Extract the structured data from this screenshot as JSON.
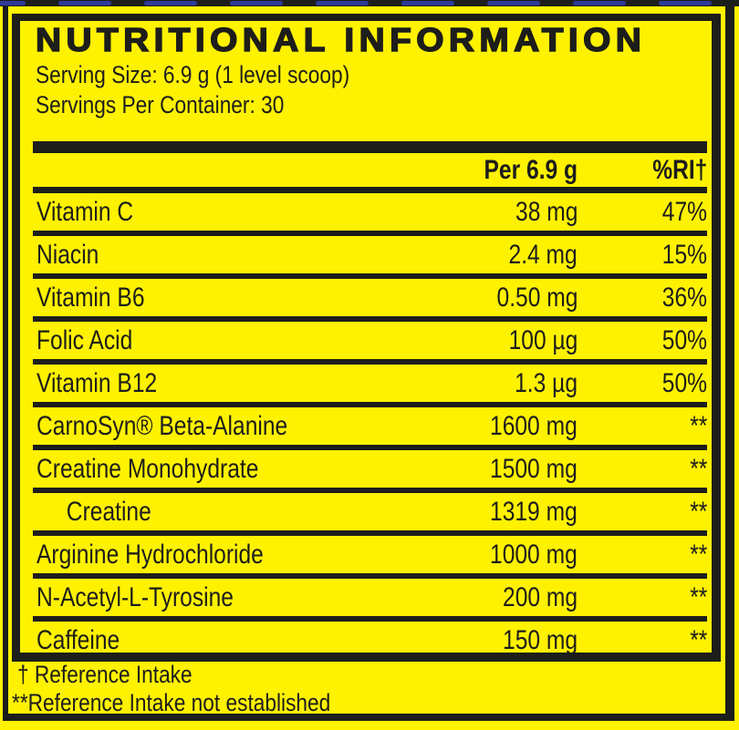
{
  "label": {
    "title": "NUTRITIONAL INFORMATION",
    "serving_size": "Serving Size: 6.9 g (1 level scoop)",
    "servings_per_container": "Servings Per Container: 30"
  },
  "table": {
    "columns": {
      "amount": "Per 6.9 g",
      "rdi": "%RI†"
    },
    "rows": [
      {
        "name": "Vitamin C",
        "amount": "38 mg",
        "rdi": "47%"
      },
      {
        "name": "Niacin",
        "amount": "2.4 mg",
        "rdi": "15%"
      },
      {
        "name": "Vitamin B6",
        "amount": "0.50 mg",
        "rdi": "36%"
      },
      {
        "name": "Folic Acid",
        "amount": "100 µg",
        "rdi": "50%"
      },
      {
        "name": "Vitamin B12",
        "amount": "1.3 µg",
        "rdi": "50%"
      },
      {
        "name": "CarnoSyn® Beta-Alanine",
        "amount": "1600 mg",
        "rdi": "**"
      },
      {
        "name": "Creatine Monohydrate",
        "amount": "1500 mg",
        "rdi": "**"
      },
      {
        "name": "Creatine",
        "amount": "1319 mg",
        "rdi": "**"
      },
      {
        "name": "Arginine Hydrochloride",
        "amount": "1000 mg",
        "rdi": "**"
      },
      {
        "name": "N-Acetyl-L-Tyrosine",
        "amount": "200 mg",
        "rdi": "**"
      },
      {
        "name": "Caffeine",
        "amount": "150 mg",
        "rdi": "**"
      }
    ]
  },
  "footnotes": {
    "reference_intake": "† Reference Intake",
    "not_established": "**Reference Intake not established"
  },
  "colors": {
    "yellow": "#FFF200",
    "black": "#1D1D1B",
    "blue": "#2E3A99"
  }
}
